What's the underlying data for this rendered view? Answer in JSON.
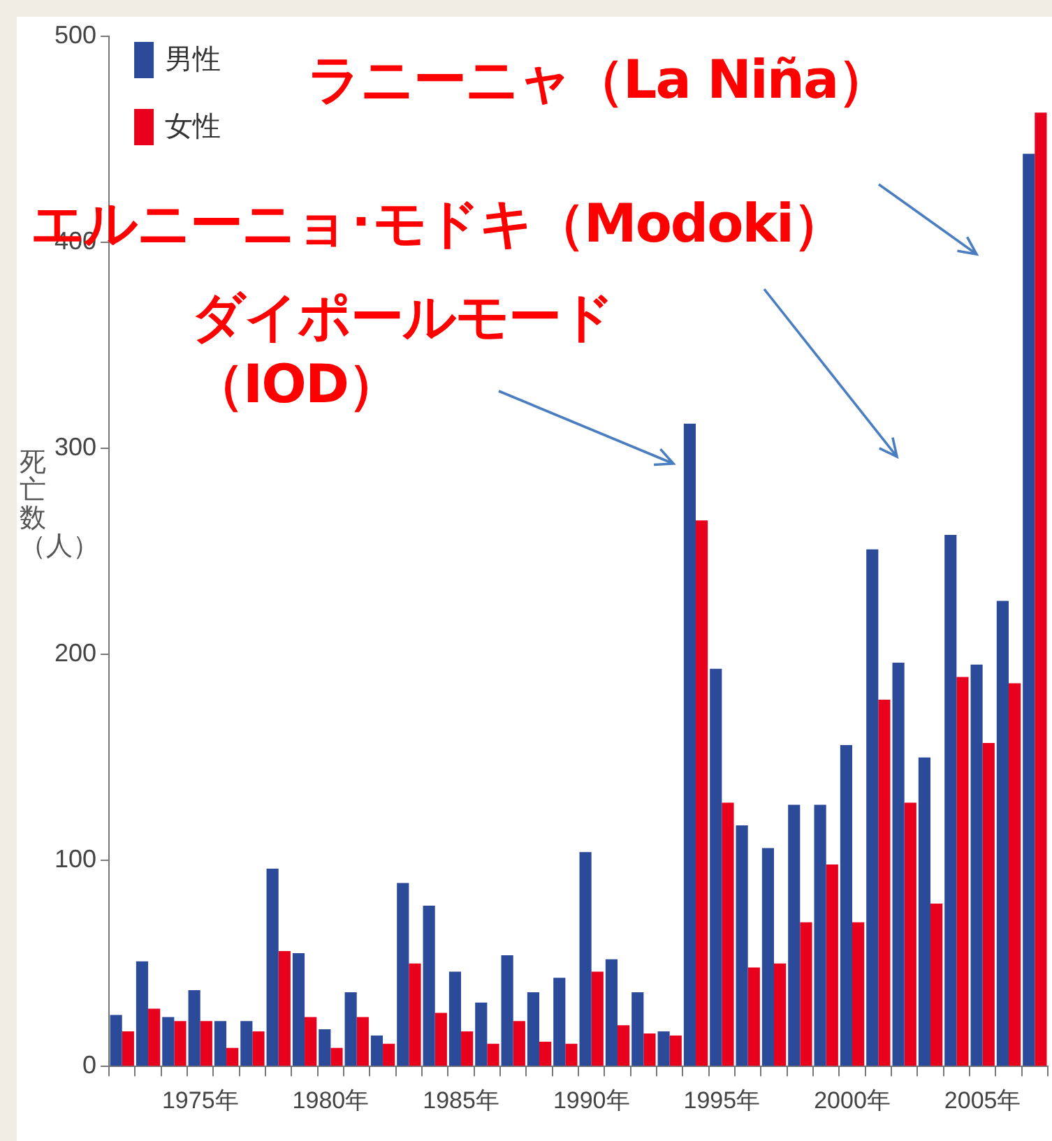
{
  "chart_data": {
    "type": "bar",
    "ylabel": "死亡数（人）",
    "categories": [
      null,
      null,
      null,
      "1975年",
      null,
      null,
      null,
      null,
      "1980年",
      null,
      null,
      null,
      null,
      "1985年",
      null,
      null,
      null,
      null,
      "1990年",
      null,
      null,
      null,
      null,
      "1995年",
      null,
      null,
      null,
      null,
      "2000年",
      null,
      null,
      null,
      null,
      "2005年",
      null,
      null
    ],
    "series": [
      {
        "name": "男性",
        "color": "#2b4a9a",
        "values": [
          25,
          51,
          24,
          37,
          22,
          22,
          96,
          55,
          18,
          36,
          15,
          89,
          78,
          46,
          31,
          54,
          36,
          43,
          104,
          52,
          36,
          17,
          312,
          193,
          117,
          106,
          127,
          127,
          156,
          251,
          196,
          150,
          258,
          195,
          226,
          443
        ]
      },
      {
        "name": "女性",
        "color": "#e8001c",
        "values": [
          17,
          28,
          22,
          22,
          9,
          17,
          56,
          24,
          9,
          24,
          11,
          50,
          26,
          17,
          11,
          22,
          12,
          11,
          46,
          20,
          16,
          15,
          265,
          128,
          48,
          50,
          70,
          98,
          70,
          178,
          128,
          79,
          189,
          157,
          186,
          463
        ]
      }
    ],
    "ylim": [
      0,
      500
    ],
    "yticks": [
      0,
      100,
      200,
      300,
      400,
      500
    ],
    "grid": false,
    "legend": "top left",
    "annotations": [
      "ラニーニャ（La Niña）",
      "エルニーニョ･モドキ（Modoki）",
      "ダイポールモード（IOD）"
    ]
  }
}
